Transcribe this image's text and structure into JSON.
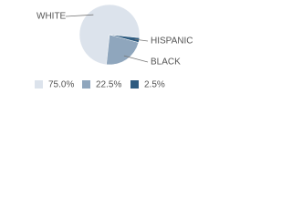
{
  "chart_data": {
    "type": "pie",
    "categories": [
      "WHITE",
      "BLACK",
      "HISPANIC"
    ],
    "values": [
      75,
      22.5,
      2.5
    ],
    "value_labels": [
      "75.0%",
      "22.5%",
      "2.5%"
    ],
    "colors": [
      "#dce3ec",
      "#8fa6bd",
      "#2e5b80"
    ]
  }
}
